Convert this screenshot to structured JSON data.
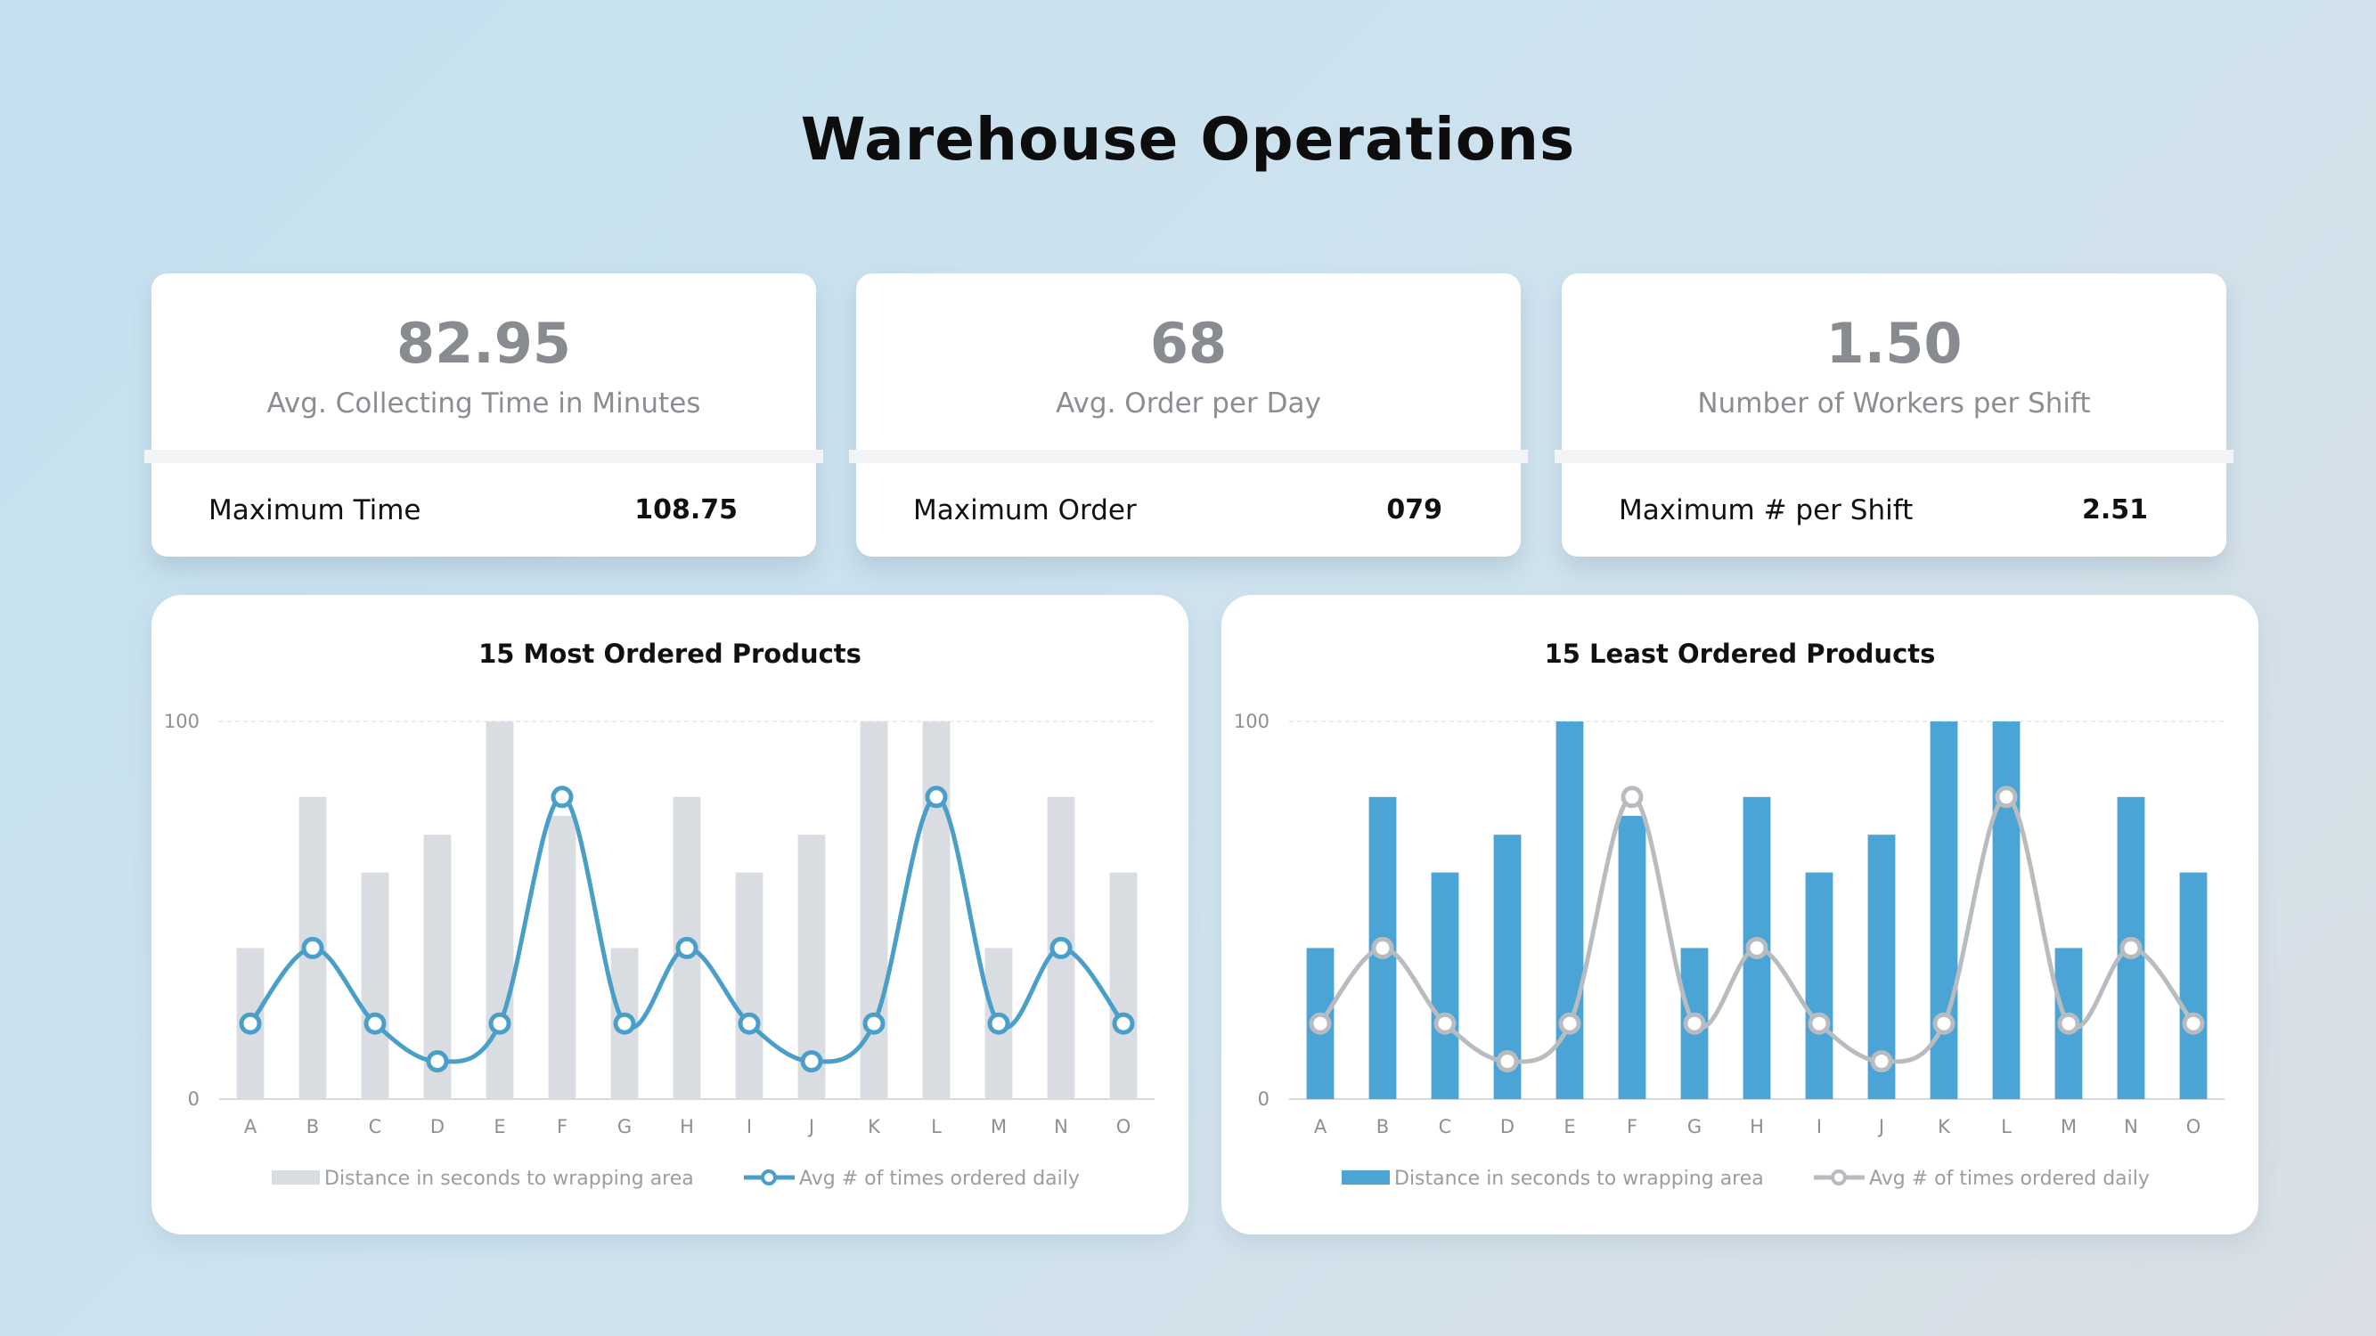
{
  "page": {
    "title": "Warehouse Operations"
  },
  "kpis": [
    {
      "value": "82.95",
      "label": "Avg. Collecting Time in Minutes",
      "sub_label": "Maximum Time",
      "sub_value": "108.75"
    },
    {
      "value": "68",
      "label": "Avg. Order per Day",
      "sub_label": "Maximum Order",
      "sub_value": "079"
    },
    {
      "value": "1.50",
      "label": "Number of Workers per Shift",
      "sub_label": "Maximum # per Shift",
      "sub_value": "2.51"
    }
  ],
  "chart_data": [
    {
      "type": "bar",
      "title": "15 Most Ordered Products",
      "categories": [
        "A",
        "B",
        "C",
        "D",
        "E",
        "F",
        "G",
        "H",
        "I",
        "J",
        "K",
        "L",
        "M",
        "N",
        "O"
      ],
      "ylim": [
        0,
        100
      ],
      "yticks": [
        "0",
        "100"
      ],
      "grid": true,
      "legend": "bottom",
      "bar_color": "#d9dce0",
      "line_color": "#4a9fc9",
      "marker_fill": "#ffffff",
      "series": [
        {
          "name": "Distance in seconds to wrapping area",
          "kind": "bar",
          "values": [
            40,
            80,
            60,
            70,
            100,
            75,
            40,
            80,
            60,
            70,
            100,
            100,
            40,
            80,
            60
          ]
        },
        {
          "name": "Avg # of times ordered daily",
          "kind": "line",
          "values": [
            20,
            40,
            20,
            10,
            20,
            80,
            20,
            40,
            20,
            10,
            20,
            80,
            20,
            40,
            20
          ]
        }
      ]
    },
    {
      "type": "bar",
      "title": "15 Least Ordered Products",
      "categories": [
        "A",
        "B",
        "C",
        "D",
        "E",
        "F",
        "G",
        "H",
        "I",
        "J",
        "K",
        "L",
        "M",
        "N",
        "O"
      ],
      "ylim": [
        0,
        100
      ],
      "yticks": [
        "0",
        "100"
      ],
      "grid": true,
      "legend": "bottom",
      "bar_color": "#4aa4d6",
      "line_color": "#b8bcc1",
      "marker_fill": "#ffffff",
      "series": [
        {
          "name": "Distance in seconds to wrapping area",
          "kind": "bar",
          "values": [
            40,
            80,
            60,
            70,
            100,
            75,
            40,
            80,
            60,
            70,
            100,
            100,
            40,
            80,
            60
          ]
        },
        {
          "name": "Avg # of times ordered daily",
          "kind": "line",
          "values": [
            20,
            40,
            20,
            10,
            20,
            80,
            20,
            40,
            20,
            10,
            20,
            80,
            20,
            40,
            20
          ]
        }
      ]
    }
  ]
}
